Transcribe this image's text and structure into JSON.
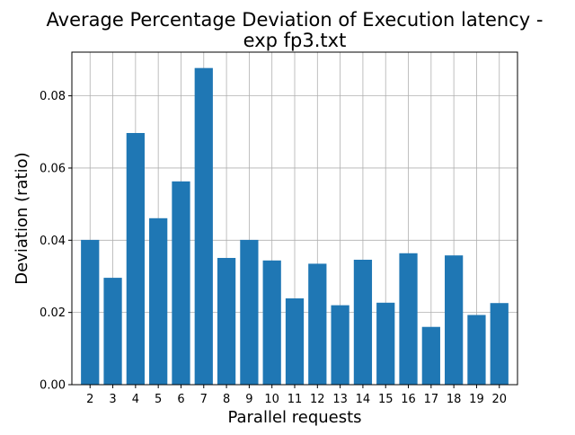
{
  "chart_data": {
    "type": "bar",
    "title_lines": [
      "Average Percentage Deviation of Execution latency -",
      "exp fp3.txt"
    ],
    "xlabel": "Parallel requests",
    "ylabel": "Deviation (ratio)",
    "categories": [
      "2",
      "3",
      "4",
      "5",
      "6",
      "7",
      "8",
      "9",
      "10",
      "11",
      "12",
      "13",
      "14",
      "15",
      "16",
      "17",
      "18",
      "19",
      "20"
    ],
    "values": [
      0.0401,
      0.0296,
      0.0697,
      0.0461,
      0.0563,
      0.0877,
      0.0351,
      0.0401,
      0.0344,
      0.0239,
      0.0335,
      0.022,
      0.0346,
      0.0227,
      0.0364,
      0.016,
      0.0358,
      0.0193,
      0.0226
    ],
    "ylim": [
      0,
      0.0921
    ],
    "yticks": [
      "0.00",
      "0.02",
      "0.04",
      "0.06",
      "0.08"
    ],
    "ytick_values": [
      0,
      0.02,
      0.04,
      0.06,
      0.08
    ],
    "grid": true,
    "bar_color": "#1f77b4",
    "grid_color": "#b0b0b0"
  }
}
